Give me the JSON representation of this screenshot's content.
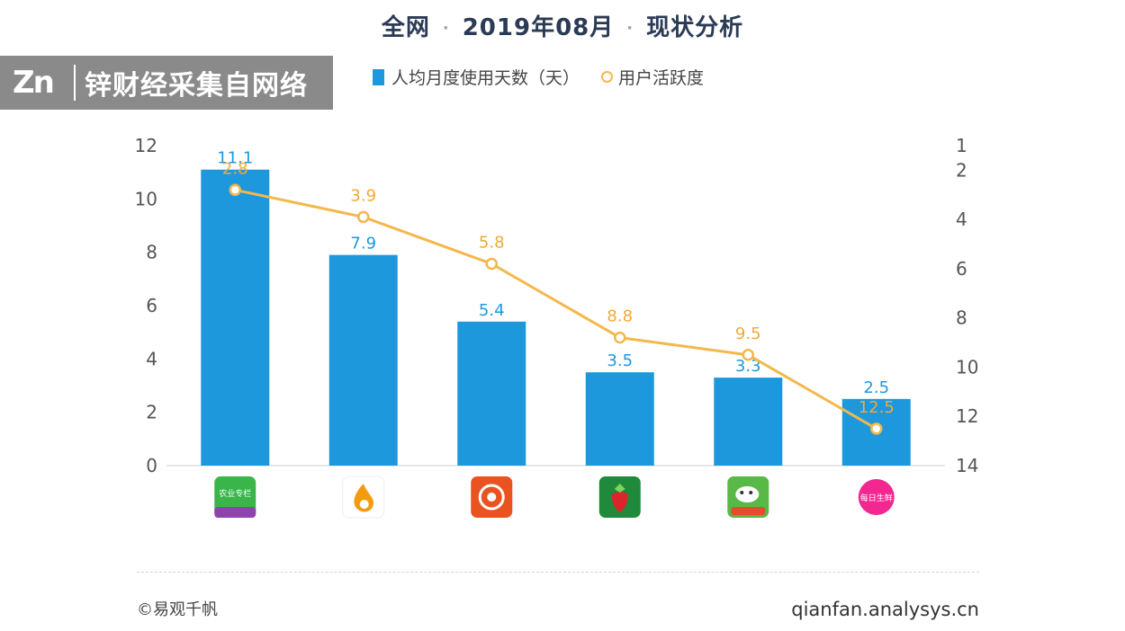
{
  "header": {
    "title_parts": [
      "全网",
      "2019年08月",
      "现状分析"
    ],
    "title_separator": "·"
  },
  "watermark": {
    "logo": "Zn",
    "text": "锌财经采集自网络"
  },
  "legend": {
    "bar_label": "人均月度使用天数（天）",
    "line_label": "用户活跃度"
  },
  "footer": {
    "source_left": "©易观千帆",
    "source_right": "qianfan.analysys.cn"
  },
  "colors": {
    "bar": "#1e98dc",
    "bar_label": "#1e98dc",
    "line": "#f4b74c",
    "line_label": "#f0a93a",
    "axis_text": "#555555",
    "title": "#2b3a55"
  },
  "chart_data": {
    "type": "bar+line",
    "categories": [
      "app-1",
      "app-2",
      "app-3",
      "app-4",
      "app-5",
      "app-6"
    ],
    "category_icons": [
      {
        "name": "app-icon-green-purple",
        "bg": "#39b54a",
        "bg2": "#8e44ad",
        "text": "农业专栏"
      },
      {
        "name": "app-icon-orange-flame",
        "bg": "#ffffff",
        "bg2": "#f39c12",
        "text": ""
      },
      {
        "name": "app-icon-orange-circle",
        "bg": "#e8531f",
        "bg2": "#ffffff",
        "text": ""
      },
      {
        "name": "app-icon-green-strawberry",
        "bg": "#1f8a3b",
        "bg2": "#d9262c",
        "text": ""
      },
      {
        "name": "app-icon-green-dog",
        "bg": "#58b947",
        "bg2": "#e84a2b",
        "text": ""
      },
      {
        "name": "app-icon-pink-circle",
        "bg": "#f2278f",
        "bg2": "#ffffff",
        "text": "每日生鲜"
      }
    ],
    "series": [
      {
        "name": "人均月度使用天数（天）",
        "type": "bar",
        "axis": "left",
        "values": [
          11.1,
          7.9,
          5.4,
          3.5,
          3.3,
          2.5
        ]
      },
      {
        "name": "用户活跃度",
        "type": "line",
        "axis": "right",
        "values": [
          2.8,
          3.9,
          5.8,
          8.8,
          9.5,
          12.5
        ]
      }
    ],
    "left_axis": {
      "min": 0,
      "max": 12,
      "ticks": [
        0,
        2,
        4,
        6,
        8,
        10,
        12
      ]
    },
    "right_axis": {
      "min": 1,
      "max": 14,
      "inverted": true,
      "ticks": [
        1,
        2,
        4,
        6,
        8,
        10,
        12,
        14
      ]
    },
    "grid": false,
    "legend_position": "top"
  }
}
